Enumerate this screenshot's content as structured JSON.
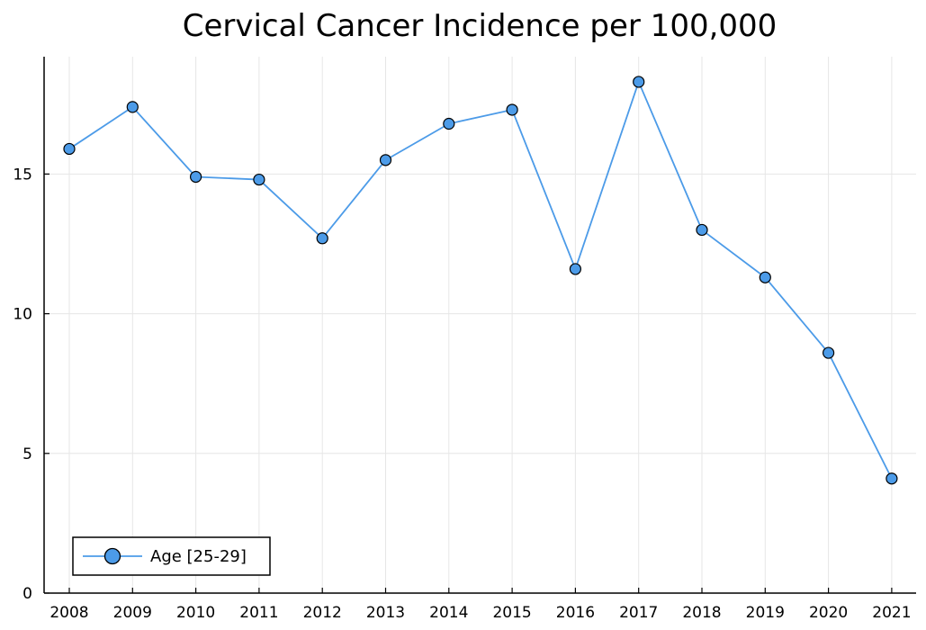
{
  "chart_data": {
    "type": "line",
    "title": "Cervical Cancer Incidence per 100,000",
    "xlabel": "",
    "ylabel": "",
    "categories": [
      "2008",
      "2009",
      "2010",
      "2011",
      "2012",
      "2013",
      "2014",
      "2015",
      "2016",
      "2017",
      "2018",
      "2019",
      "2020",
      "2021"
    ],
    "series": [
      {
        "name": "Age [25-29]",
        "values": [
          15.9,
          17.4,
          14.9,
          14.8,
          12.7,
          15.5,
          16.8,
          17.3,
          11.6,
          18.3,
          13.0,
          11.3,
          8.6,
          4.1
        ],
        "color": "#4c9be8",
        "marker": "circle"
      }
    ],
    "ylim": [
      0,
      19.2
    ],
    "yticks": [
      "0",
      "5",
      "10",
      "15"
    ],
    "grid": true,
    "legend_position": "bottom-left"
  }
}
